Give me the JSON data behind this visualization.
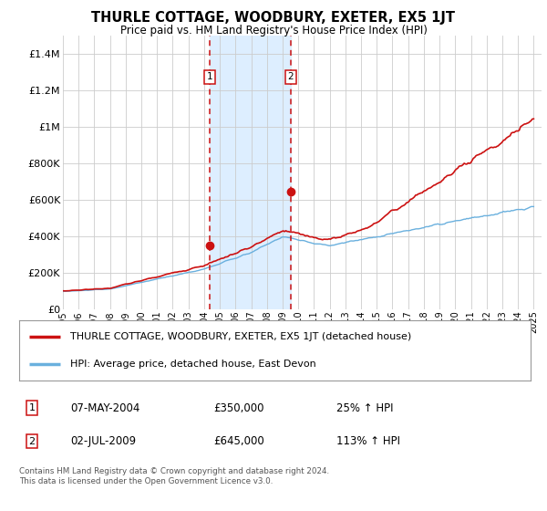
{
  "title": "THURLE COTTAGE, WOODBURY, EXETER, EX5 1JT",
  "subtitle": "Price paid vs. HM Land Registry's House Price Index (HPI)",
  "y_ticks": [
    0,
    200000,
    400000,
    600000,
    800000,
    1000000,
    1200000,
    1400000
  ],
  "y_labels": [
    "£0",
    "£200K",
    "£400K",
    "£600K",
    "£800K",
    "£1M",
    "£1.2M",
    "£1.4M"
  ],
  "ylim": [
    0,
    1500000
  ],
  "xlim_start": 1995,
  "xlim_end": 2025.5,
  "sale1_x": 2004.37,
  "sale1_y": 350000,
  "sale1_label": "1",
  "sale2_x": 2009.5,
  "sale2_y": 645000,
  "sale2_label": "2",
  "hpi_color": "#6ab0de",
  "price_color": "#cc1111",
  "shade_color": "#ddeeff",
  "grid_color": "#cccccc",
  "bg_color": "#ffffff",
  "legend_line1": "THURLE COTTAGE, WOODBURY, EXETER, EX5 1JT (detached house)",
  "legend_line2": "HPI: Average price, detached house, East Devon",
  "table_row1_num": "1",
  "table_row1_date": "07-MAY-2004",
  "table_row1_price": "£350,000",
  "table_row1_hpi": "25% ↑ HPI",
  "table_row2_num": "2",
  "table_row2_date": "02-JUL-2009",
  "table_row2_price": "£645,000",
  "table_row2_hpi": "113% ↑ HPI",
  "footer": "Contains HM Land Registry data © Crown copyright and database right 2024.\nThis data is licensed under the Open Government Licence v3.0."
}
